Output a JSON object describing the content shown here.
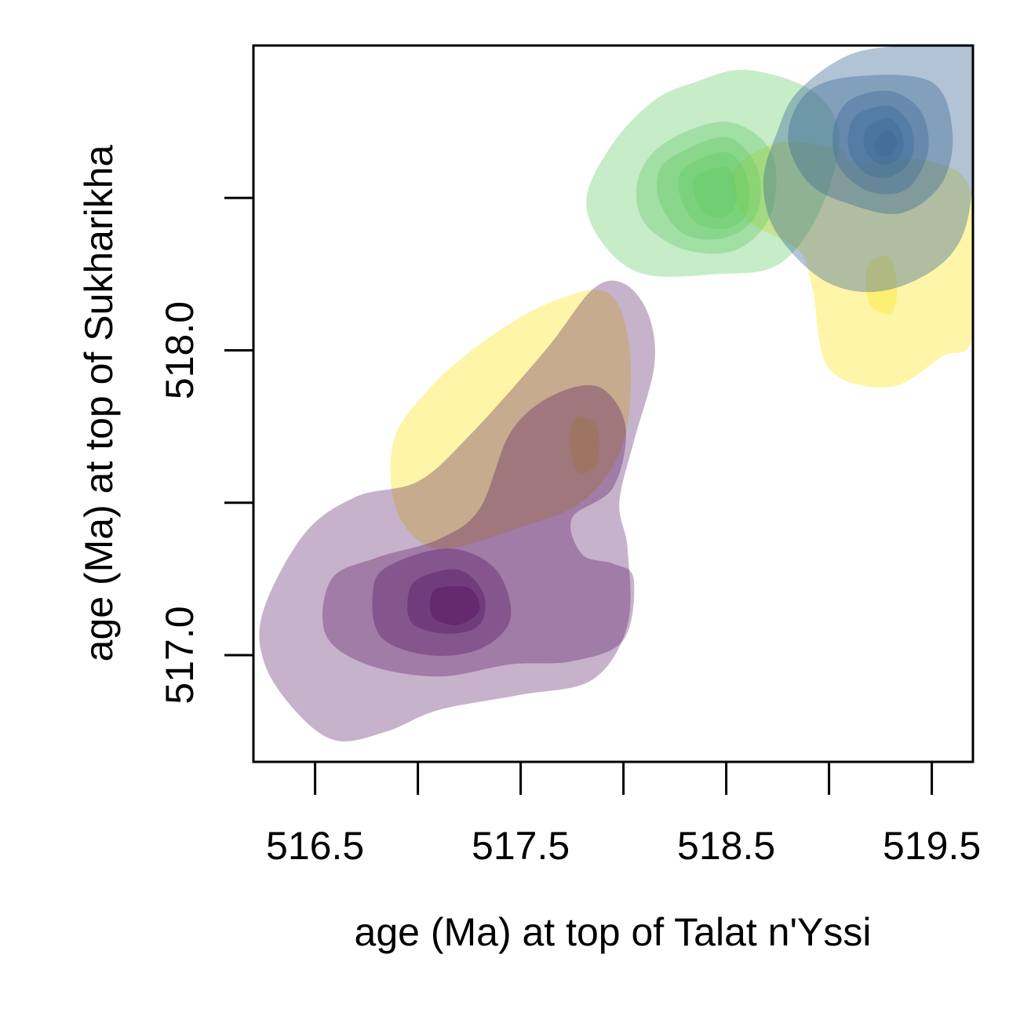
{
  "chart_data": {
    "type": "contour",
    "title": "",
    "xlabel": "age (Ma) at top of Talat n'Yssi",
    "ylabel": "age (Ma) at top of Sukharikha",
    "xlim": [
      516.2,
      519.7
    ],
    "ylim": [
      516.65,
      519.0
    ],
    "x_ticks": [
      516.5,
      517.0,
      517.5,
      518.0,
      518.5,
      519.0,
      519.5
    ],
    "x_tick_labels": [
      "516.5",
      "",
      "517.5",
      "",
      "518.5",
      "",
      "519.5"
    ],
    "y_ticks": [
      517.0,
      517.5,
      518.0,
      518.5
    ],
    "y_tick_labels": [
      "517.0",
      "",
      "518.0",
      ""
    ],
    "grid": false,
    "legend": "none",
    "series": [
      {
        "color": "#fde725",
        "levels": [
          {
            "opacity": 0.4,
            "polygon": [
              [
                517.62,
                518.15
              ],
              [
                517.92,
                518.19
              ],
              [
                518.03,
                518.0
              ],
              [
                518.0,
                517.7
              ],
              [
                517.81,
                517.51
              ],
              [
                517.5,
                517.42
              ],
              [
                517.1,
                517.35
              ],
              [
                516.9,
                517.47
              ],
              [
                516.88,
                517.7
              ],
              [
                517.05,
                517.87
              ],
              [
                517.3,
                518.02
              ]
            ]
          },
          {
            "opacity": 0.4,
            "polygon": [
              [
                517.77,
                517.78
              ],
              [
                517.87,
                517.75
              ],
              [
                517.87,
                517.63
              ],
              [
                517.78,
                517.6
              ],
              [
                517.74,
                517.7
              ]
            ]
          },
          {
            "opacity": 0.4,
            "polygon": [
              [
                519.12,
                518.62
              ],
              [
                519.5,
                518.62
              ],
              [
                519.7,
                518.5
              ],
              [
                519.7,
                518.05
              ],
              [
                519.55,
                517.98
              ],
              [
                519.3,
                517.88
              ],
              [
                519.0,
                517.94
              ],
              [
                518.92,
                518.2
              ],
              [
                518.85,
                518.33
              ],
              [
                518.6,
                518.43
              ],
              [
                518.53,
                518.58
              ],
              [
                518.75,
                518.68
              ],
              [
                519.05,
                518.66
              ]
            ]
          },
          {
            "opacity": 0.4,
            "polygon": [
              [
                519.22,
                518.3
              ],
              [
                519.3,
                518.3
              ],
              [
                519.33,
                518.2
              ],
              [
                519.3,
                518.12
              ],
              [
                519.2,
                518.15
              ],
              [
                519.18,
                518.25
              ]
            ]
          }
        ]
      },
      {
        "color": "#5ec962",
        "levels": [
          {
            "opacity": 0.35,
            "polygon": [
              [
                518.35,
                518.88
              ],
              [
                518.6,
                518.92
              ],
              [
                518.92,
                518.85
              ],
              [
                519.05,
                518.7
              ],
              [
                518.95,
                518.45
              ],
              [
                518.75,
                518.28
              ],
              [
                518.45,
                518.25
              ],
              [
                518.1,
                518.25
              ],
              [
                517.9,
                518.35
              ],
              [
                517.82,
                518.5
              ],
              [
                517.95,
                518.68
              ],
              [
                518.15,
                518.82
              ]
            ]
          },
          {
            "opacity": 0.35,
            "polygon": [
              [
                518.2,
                518.68
              ],
              [
                518.5,
                518.75
              ],
              [
                518.72,
                518.65
              ],
              [
                518.72,
                518.45
              ],
              [
                518.55,
                518.33
              ],
              [
                518.3,
                518.33
              ],
              [
                518.1,
                518.42
              ],
              [
                518.07,
                518.56
              ]
            ]
          },
          {
            "opacity": 0.35,
            "polygon": [
              [
                518.25,
                518.64
              ],
              [
                518.5,
                518.7
              ],
              [
                518.65,
                518.6
              ],
              [
                518.65,
                518.45
              ],
              [
                518.5,
                518.37
              ],
              [
                518.3,
                518.38
              ],
              [
                518.18,
                518.48
              ],
              [
                518.17,
                518.58
              ]
            ]
          },
          {
            "opacity": 0.35,
            "polygon": [
              [
                518.3,
                518.6
              ],
              [
                518.5,
                518.65
              ],
              [
                518.6,
                518.57
              ],
              [
                518.6,
                518.45
              ],
              [
                518.5,
                518.4
              ],
              [
                518.35,
                518.42
              ],
              [
                518.27,
                518.52
              ]
            ]
          },
          {
            "opacity": 0.35,
            "polygon": [
              [
                518.35,
                518.57
              ],
              [
                518.5,
                518.6
              ],
              [
                518.55,
                518.52
              ],
              [
                518.52,
                518.45
              ],
              [
                518.42,
                518.44
              ],
              [
                518.35,
                518.5
              ]
            ]
          }
        ]
      },
      {
        "color": "#3b6a96",
        "levels": [
          {
            "opacity": 0.4,
            "polygon": [
              [
                519.1,
                518.97
              ],
              [
                519.4,
                519.0
              ],
              [
                519.7,
                519.0
              ],
              [
                519.7,
                518.55
              ],
              [
                519.6,
                518.32
              ],
              [
                519.3,
                518.2
              ],
              [
                519.0,
                518.22
              ],
              [
                518.75,
                518.38
              ],
              [
                518.68,
                518.55
              ],
              [
                518.75,
                518.72
              ],
              [
                518.85,
                518.85
              ]
            ]
          },
          {
            "opacity": 0.4,
            "polygon": [
              [
                518.9,
                518.85
              ],
              [
                519.15,
                518.9
              ],
              [
                519.5,
                518.88
              ],
              [
                519.6,
                518.72
              ],
              [
                519.55,
                518.55
              ],
              [
                519.35,
                518.45
              ],
              [
                519.1,
                518.48
              ],
              [
                518.9,
                518.55
              ],
              [
                518.8,
                518.7
              ]
            ]
          },
          {
            "opacity": 0.4,
            "polygon": [
              [
                519.1,
                518.82
              ],
              [
                519.3,
                518.85
              ],
              [
                519.45,
                518.78
              ],
              [
                519.48,
                518.65
              ],
              [
                519.38,
                518.53
              ],
              [
                519.2,
                518.52
              ],
              [
                519.05,
                518.6
              ],
              [
                519.02,
                518.72
              ]
            ]
          },
          {
            "opacity": 0.4,
            "polygon": [
              [
                519.15,
                518.78
              ],
              [
                519.3,
                518.8
              ],
              [
                519.4,
                518.73
              ],
              [
                519.4,
                518.63
              ],
              [
                519.3,
                518.57
              ],
              [
                519.18,
                518.58
              ],
              [
                519.1,
                518.65
              ],
              [
                519.1,
                518.73
              ]
            ]
          },
          {
            "opacity": 0.4,
            "polygon": [
              [
                519.2,
                518.74
              ],
              [
                519.3,
                518.76
              ],
              [
                519.36,
                518.7
              ],
              [
                519.34,
                518.63
              ],
              [
                519.25,
                518.61
              ],
              [
                519.18,
                518.65
              ],
              [
                519.17,
                518.7
              ]
            ]
          },
          {
            "opacity": 0.4,
            "polygon": [
              [
                519.25,
                518.71
              ],
              [
                519.3,
                518.72
              ],
              [
                519.33,
                518.68
              ],
              [
                519.3,
                518.64
              ],
              [
                519.25,
                518.64
              ],
              [
                519.22,
                518.67
              ]
            ]
          }
        ]
      },
      {
        "color": "#440154",
        "levels": [
          {
            "opacity": 0.3,
            "polygon": [
              [
                517.25,
                517.72
              ],
              [
                517.62,
                518.0
              ],
              [
                517.85,
                518.2
              ],
              [
                518.0,
                518.22
              ],
              [
                518.12,
                518.12
              ],
              [
                518.15,
                517.95
              ],
              [
                518.05,
                517.7
              ],
              [
                517.98,
                517.5
              ],
              [
                518.02,
                517.35
              ],
              [
                518.02,
                517.1
              ],
              [
                517.85,
                516.92
              ],
              [
                517.5,
                516.87
              ],
              [
                517.1,
                516.82
              ],
              [
                516.85,
                516.75
              ],
              [
                516.6,
                516.72
              ],
              [
                516.4,
                516.82
              ],
              [
                516.25,
                516.98
              ],
              [
                516.25,
                517.15
              ],
              [
                516.45,
                517.4
              ],
              [
                516.7,
                517.52
              ],
              [
                517.0,
                517.57
              ]
            ]
          },
          {
            "opacity": 0.3,
            "polygon": [
              [
                517.45,
                517.73
              ],
              [
                517.65,
                517.85
              ],
              [
                517.88,
                517.88
              ],
              [
                518.01,
                517.75
              ],
              [
                517.95,
                517.55
              ],
              [
                517.75,
                517.45
              ],
              [
                517.8,
                517.33
              ],
              [
                517.95,
                517.3
              ],
              [
                518.05,
                517.25
              ],
              [
                518.0,
                517.05
              ],
              [
                517.75,
                516.98
              ],
              [
                517.45,
                516.97
              ],
              [
                517.1,
                516.93
              ],
              [
                516.75,
                516.97
              ],
              [
                516.55,
                517.07
              ],
              [
                516.58,
                517.25
              ],
              [
                516.8,
                517.32
              ],
              [
                517.1,
                517.38
              ],
              [
                517.3,
                517.48
              ]
            ]
          },
          {
            "opacity": 0.3,
            "polygon": [
              [
                516.85,
                517.29
              ],
              [
                517.15,
                517.35
              ],
              [
                517.38,
                517.28
              ],
              [
                517.45,
                517.12
              ],
              [
                517.3,
                517.02
              ],
              [
                517.05,
                517.0
              ],
              [
                516.82,
                517.06
              ],
              [
                516.78,
                517.2
              ]
            ]
          },
          {
            "opacity": 0.3,
            "polygon": [
              [
                517.0,
                517.25
              ],
              [
                517.2,
                517.28
              ],
              [
                517.32,
                517.2
              ],
              [
                517.3,
                517.1
              ],
              [
                517.15,
                517.07
              ],
              [
                516.98,
                517.1
              ],
              [
                516.95,
                517.18
              ]
            ]
          },
          {
            "opacity": 0.3,
            "polygon": [
              [
                517.1,
                517.22
              ],
              [
                517.25,
                517.22
              ],
              [
                517.3,
                517.15
              ],
              [
                517.2,
                517.1
              ],
              [
                517.08,
                517.12
              ],
              [
                517.06,
                517.18
              ]
            ]
          }
        ]
      }
    ]
  }
}
